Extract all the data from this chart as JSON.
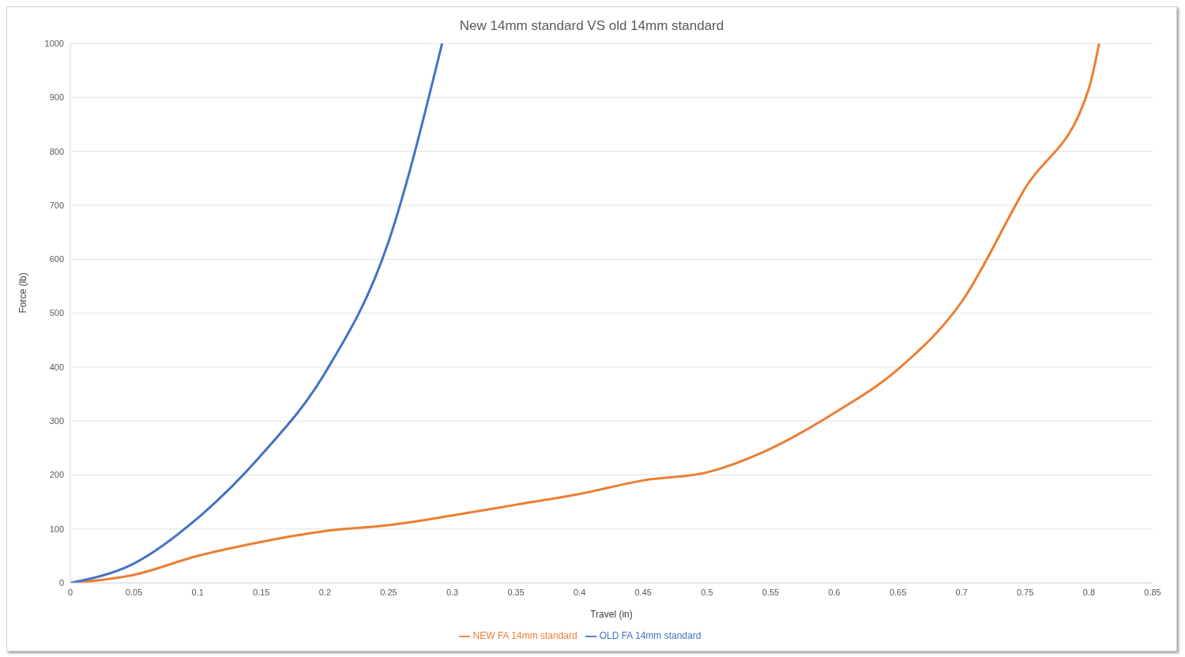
{
  "chart_data": {
    "type": "line",
    "title": "New 14mm standard VS old 14mm standard",
    "xlabel": "Travel (in)",
    "ylabel": "Force (lb)",
    "series": [
      {
        "name": "NEW FA 14mm standard",
        "color": "#ed7d31",
        "x": [
          0,
          0.05,
          0.1,
          0.15,
          0.2,
          0.25,
          0.3,
          0.35,
          0.4,
          0.45,
          0.5,
          0.55,
          0.6,
          0.65,
          0.7,
          0.75,
          0.8,
          0.808
        ],
        "values": [
          0,
          15,
          50,
          76,
          96,
          107,
          125,
          145,
          165,
          190,
          205,
          249,
          315,
          396,
          521,
          732,
          917,
          1000
        ]
      },
      {
        "name": "OLD FA 14mm standard",
        "color": "#4472c4",
        "x": [
          0,
          0.05,
          0.1,
          0.15,
          0.2,
          0.25,
          0.292
        ],
        "values": [
          0,
          36,
          120,
          237,
          389,
          633,
          1000
        ]
      }
    ],
    "xlim": [
      0,
      0.85
    ],
    "xticks": [
      0,
      0.05,
      0.1,
      0.15,
      0.2,
      0.25,
      0.3,
      0.35,
      0.4,
      0.45,
      0.5,
      0.55,
      0.6,
      0.65,
      0.7,
      0.75,
      0.8,
      0.85
    ],
    "ylim": [
      0,
      1000
    ],
    "yticks": [
      0,
      100,
      200,
      300,
      400,
      500,
      600,
      700,
      800,
      900,
      1000
    ],
    "grid": "y",
    "legend": "bottom",
    "marker": "none",
    "line_style": "solid"
  }
}
